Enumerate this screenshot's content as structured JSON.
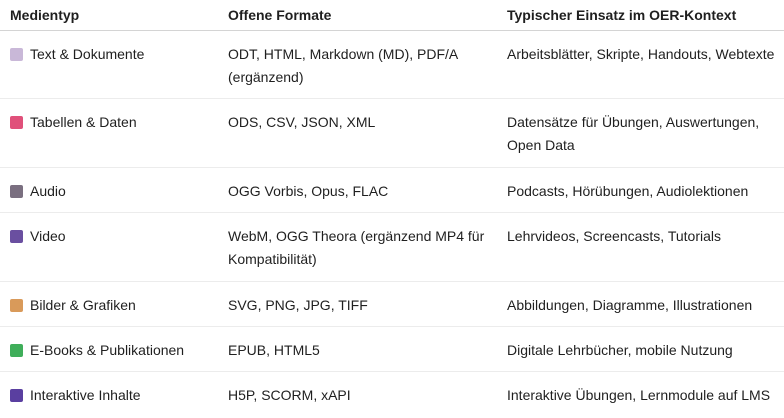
{
  "headers": [
    "Medientyp",
    "Offene Formate",
    "Typischer Einsatz im OER-Kontext"
  ],
  "rows": [
    {
      "icon": "memo-icon",
      "color": "#c9b8d8",
      "type": "Text & Dokumente",
      "formats": "ODT, HTML, Markdown (MD), PDF/A (ergänzend)",
      "use": "Arbeitsblätter, Skripte, Handouts, Webtexte"
    },
    {
      "icon": "bar-chart-icon",
      "color": "#e0507a",
      "type": "Tabellen & Daten",
      "formats": "ODS, CSV, JSON, XML",
      "use": "Datensätze für Übungen, Auswertungen, Open Data"
    },
    {
      "icon": "microphone-icon",
      "color": "#7a6f80",
      "type": "Audio",
      "formats": "OGG Vorbis, Opus, FLAC",
      "use": "Podcasts, Hörübungen, Audiolektionen"
    },
    {
      "icon": "clapper-board-icon",
      "color": "#6a4fa0",
      "type": "Video",
      "formats": "WebM, OGG Theora (ergänzend MP4 für Kompatibilität)",
      "use": "Lehrvideos, Screencasts, Tutorials"
    },
    {
      "icon": "framed-picture-icon",
      "color": "#d99a5a",
      "type": "Bilder & Grafiken",
      "formats": "SVG, PNG, JPG, TIFF",
      "use": "Abbildungen, Diagramme, Illustrationen"
    },
    {
      "icon": "books-icon",
      "color": "#3fae5a",
      "type": "E-Books & Publikationen",
      "formats": "EPUB, HTML5",
      "use": "Digitale Lehrbücher, mobile Nutzung"
    },
    {
      "icon": "game-controller-icon",
      "color": "#5a3fa0",
      "type": "Interaktive Inhalte",
      "formats": "H5P, SCORM, xAPI",
      "use": "Interaktive Übungen, Lernmodule auf LMS"
    }
  ]
}
